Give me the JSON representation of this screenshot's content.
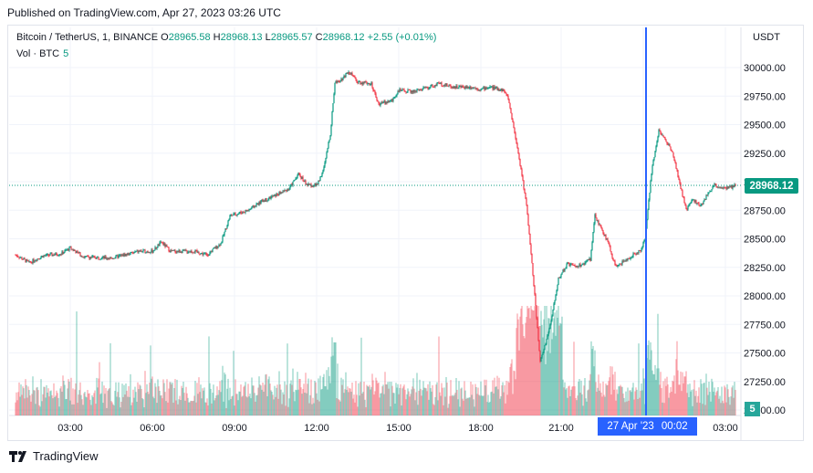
{
  "published": "Published on TradingView.com, Apr 27, 2023 03:26 UTC",
  "legend": {
    "symbol": "Bitcoin / TetherUS, 1, BINANCE",
    "open_label": "O",
    "open": "28965.58",
    "high_label": "H",
    "high": "28968.13",
    "low_label": "L",
    "low": "28965.57",
    "close_label": "C",
    "close": "28968.12",
    "change": "+2.55 (+0.01%)"
  },
  "volume": {
    "label": "Vol · BTC",
    "value": "5"
  },
  "currency": "USDT",
  "last_price": "28968.12",
  "cursor": {
    "date": "27 Apr '23",
    "time": "00:02"
  },
  "brand": "TradingView",
  "colors": {
    "up": "#089981",
    "down": "#f23645",
    "cursor": "#2962ff",
    "grid": "#f0f3fa"
  },
  "chart_data": {
    "type": "candlestick",
    "x_ticks": [
      "03:00",
      "06:00",
      "09:00",
      "12:00",
      "15:00",
      "18:00",
      "21:00",
      "00:00",
      "03:00"
    ],
    "y_ticks": [
      "30000.00",
      "29750.00",
      "29500.00",
      "29250.00",
      "29000.00",
      "28750.00",
      "28500.00",
      "28250.00",
      "28000.00",
      "27750.00",
      "27500.00",
      "27250.00",
      "27000.00"
    ],
    "ylim": [
      27000,
      30000
    ],
    "grid": true,
    "cursor_x_label": "27 Apr '23 00:02",
    "price_path": [
      [
        "01:00",
        28360
      ],
      [
        "01:30",
        28290
      ],
      [
        "02:00",
        28350
      ],
      [
        "02:40",
        28370
      ],
      [
        "03:00",
        28420
      ],
      [
        "03:30",
        28340
      ],
      [
        "04:30",
        28330
      ],
      [
        "05:30",
        28390
      ],
      [
        "06:00",
        28390
      ],
      [
        "06:20",
        28470
      ],
      [
        "06:40",
        28390
      ],
      [
        "07:30",
        28390
      ],
      [
        "08:00",
        28360
      ],
      [
        "08:30",
        28460
      ],
      [
        "08:50",
        28700
      ],
      [
        "09:30",
        28750
      ],
      [
        "10:00",
        28830
      ],
      [
        "10:30",
        28880
      ],
      [
        "11:00",
        28940
      ],
      [
        "11:20",
        29070
      ],
      [
        "11:40",
        28970
      ],
      [
        "12:00",
        28970
      ],
      [
        "12:15",
        29100
      ],
      [
        "12:30",
        29420
      ],
      [
        "12:40",
        29870
      ],
      [
        "12:55",
        29900
      ],
      [
        "13:10",
        29970
      ],
      [
        "13:30",
        29870
      ],
      [
        "14:00",
        29860
      ],
      [
        "14:15",
        29680
      ],
      [
        "14:45",
        29710
      ],
      [
        "15:00",
        29800
      ],
      [
        "15:30",
        29790
      ],
      [
        "16:00",
        29820
      ],
      [
        "16:30",
        29860
      ],
      [
        "17:00",
        29830
      ],
      [
        "17:40",
        29830
      ],
      [
        "18:00",
        29810
      ],
      [
        "18:20",
        29830
      ],
      [
        "18:50",
        29800
      ],
      [
        "19:00",
        29730
      ],
      [
        "19:20",
        29300
      ],
      [
        "19:40",
        28800
      ],
      [
        "19:55",
        28150
      ],
      [
        "20:10",
        27420
      ],
      [
        "20:30",
        27700
      ],
      [
        "20:50",
        28150
      ],
      [
        "21:10",
        28280
      ],
      [
        "21:30",
        28250
      ],
      [
        "22:00",
        28320
      ],
      [
        "22:10",
        28700
      ],
      [
        "22:40",
        28460
      ],
      [
        "22:55",
        28250
      ],
      [
        "23:20",
        28320
      ],
      [
        "23:50",
        28400
      ],
      [
        "00:00",
        28500
      ],
      [
        "00:15",
        29120
      ],
      [
        "00:30",
        29450
      ],
      [
        "01:00",
        29270
      ],
      [
        "01:15",
        29000
      ],
      [
        "01:30",
        28750
      ],
      [
        "01:45",
        28850
      ],
      [
        "02:00",
        28780
      ],
      [
        "02:30",
        28970
      ],
      [
        "03:00",
        28940
      ],
      [
        "03:20",
        28968
      ]
    ],
    "volume_spikes_btc": {
      "12:40": 800,
      "19:55": 1150,
      "20:10": 980
    }
  }
}
